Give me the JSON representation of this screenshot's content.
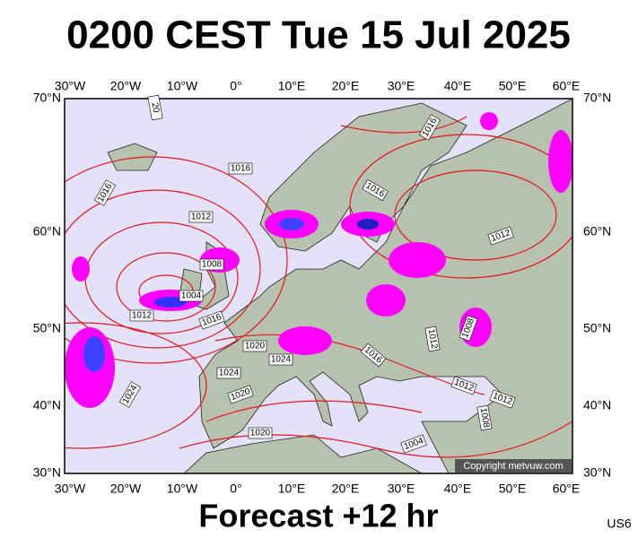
{
  "title": "0200 CEST Tue 15 Jul 2025",
  "lon_labels": [
    "30°W",
    "20°W",
    "10°W",
    "0°",
    "10°E",
    "20°E",
    "30°E",
    "40°E",
    "50°E",
    "60°E"
  ],
  "lat_labels": [
    "70°N",
    "60°N",
    "50°N",
    "40°N",
    "30°N"
  ],
  "isobar_labels": [
    "20",
    "1016",
    "1016",
    "1012",
    "1016",
    "1016",
    "1012",
    "1008",
    "1004",
    "1012",
    "1016",
    "1008",
    "1012",
    "1020",
    "1024",
    "1016",
    "1024",
    "1020",
    "1024",
    "1012",
    "1012",
    "1008",
    "1020",
    "1004"
  ],
  "copyright": "Copyright metvuw.com",
  "footer": "Forecast +12 hr",
  "code": "US6"
}
